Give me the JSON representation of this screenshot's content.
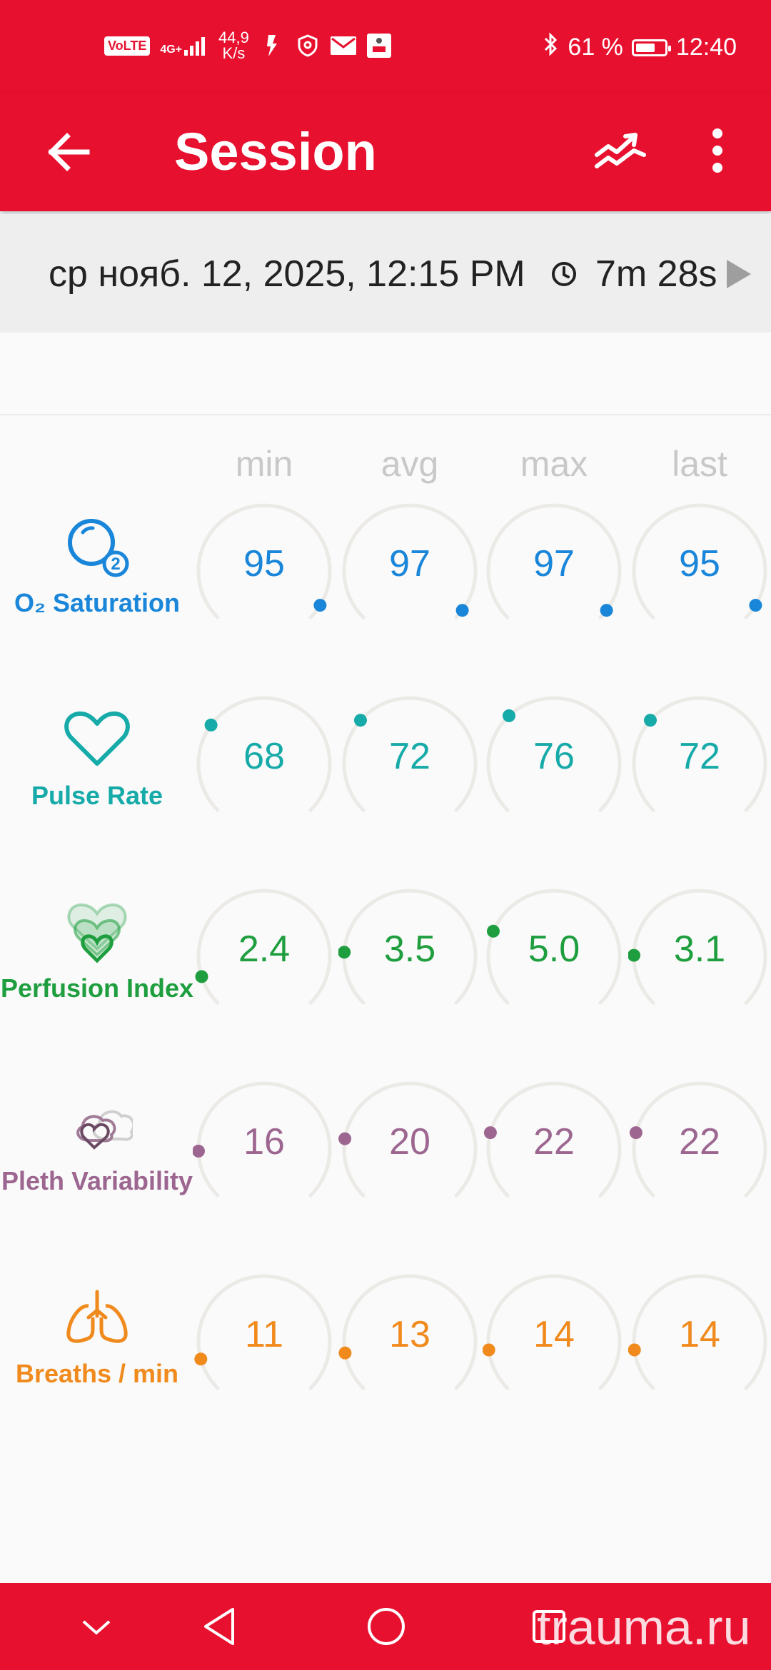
{
  "status_bar": {
    "volte": "VoLTE",
    "network": "4G+",
    "speed_value": "44,9",
    "speed_unit": "K/s",
    "battery_percent": "61 %",
    "time": "12:40"
  },
  "app_bar": {
    "title": "Session"
  },
  "session": {
    "date": "ср нояб. 12, 2025, 12:15 PM",
    "duration": "7m 28s"
  },
  "columns": [
    "min",
    "avg",
    "max",
    "last"
  ],
  "metrics": [
    {
      "key": "spo2",
      "label": "O₂ Saturation",
      "color": "#1a86d9",
      "icon": "o2-saturation-icon",
      "values": [
        "95",
        "97",
        "97",
        "95"
      ],
      "levels": [
        0.95,
        0.97,
        0.97,
        0.95
      ]
    },
    {
      "key": "pr",
      "label": "Pulse Rate",
      "color": "#16aaa8",
      "icon": "heart-icon",
      "values": [
        "68",
        "72",
        "76",
        "72"
      ],
      "levels": [
        0.3,
        0.32,
        0.34,
        0.32
      ]
    },
    {
      "key": "pi",
      "label": "Perfusion Index",
      "color": "#1e9e3e",
      "icon": "perfusion-hearts-icon",
      "values": [
        "2.4",
        "3.5",
        "5.0",
        "3.1"
      ],
      "levels": [
        0.1,
        0.18,
        0.25,
        0.17
      ]
    },
    {
      "key": "pvi",
      "label": "Pleth Variability",
      "color": "#9c6690",
      "icon": "pleth-variability-icon",
      "values": [
        "16",
        "20",
        "22",
        "22"
      ],
      "levels": [
        0.16,
        0.2,
        0.22,
        0.22
      ]
    },
    {
      "key": "rr",
      "label": "Breaths / min",
      "color": "#f08a1c",
      "icon": "lungs-icon",
      "values": [
        "11",
        "13",
        "14",
        "14"
      ],
      "levels": [
        0.11,
        0.13,
        0.14,
        0.14
      ]
    }
  ],
  "watermark": "trauma.ru",
  "colors": {
    "accent": "#e8102f",
    "track": "#ebeae6"
  }
}
